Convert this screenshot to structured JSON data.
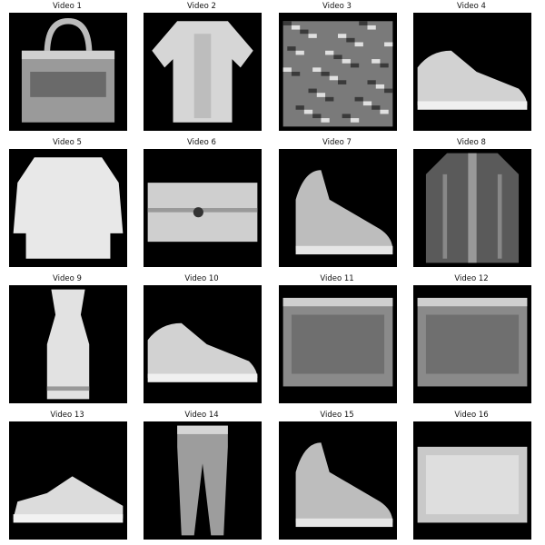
{
  "videos": [
    {
      "title": "Video 1",
      "icon": "handbag-icon"
    },
    {
      "title": "Video 2",
      "icon": "shirt-icon"
    },
    {
      "title": "Video 3",
      "icon": "textured-bag-icon"
    },
    {
      "title": "Video 4",
      "icon": "sneaker-icon"
    },
    {
      "title": "Video 5",
      "icon": "pullover-icon"
    },
    {
      "title": "Video 6",
      "icon": "wallet-bag-icon"
    },
    {
      "title": "Video 7",
      "icon": "ankle-boot-icon"
    },
    {
      "title": "Video 8",
      "icon": "coat-icon"
    },
    {
      "title": "Video 9",
      "icon": "dress-icon"
    },
    {
      "title": "Video 10",
      "icon": "sneaker-icon"
    },
    {
      "title": "Video 11",
      "icon": "bag-icon"
    },
    {
      "title": "Video 12",
      "icon": "bag-icon"
    },
    {
      "title": "Video 13",
      "icon": "sandal-sneaker-icon"
    },
    {
      "title": "Video 14",
      "icon": "trouser-icon"
    },
    {
      "title": "Video 15",
      "icon": "ankle-boot-icon"
    },
    {
      "title": "Video 16",
      "icon": "clutch-bag-icon"
    }
  ]
}
